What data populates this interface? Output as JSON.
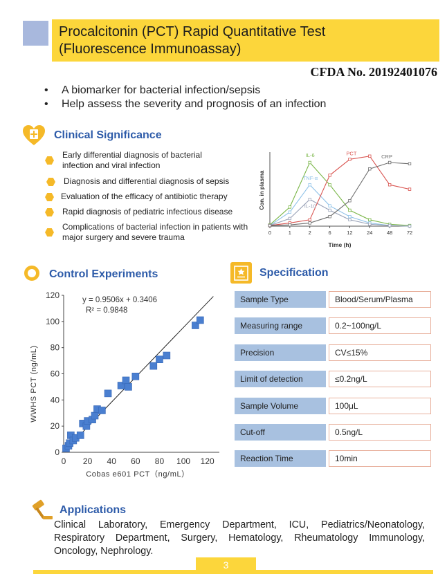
{
  "title": {
    "line1": "Procalcitonin (PCT) Rapid Quantitative Test",
    "line2": "(Fluorescence Immunoassay)"
  },
  "cfda": "CFDA No. 20192401076",
  "bullets": [
    "A biomarker for bacterial infection/sepsis",
    "Help assess the severity and prognosis of an infection"
  ],
  "clinical": {
    "heading": "Clinical Significance",
    "items": [
      "Early differential diagnosis of bacterial infection and viral infection",
      "Diagnosis and differential diagnosis of sepsis",
      "Evaluation of the efficacy of antibiotic therapy",
      "Rapid diagnosis of pediatric infectious disease",
      "Complications of bacterial infection in patients with major surgery and severe trauma"
    ]
  },
  "control": {
    "heading": "Control Experiments"
  },
  "specification": {
    "heading": "Specification",
    "rows": [
      {
        "label": "Sample  Type",
        "value": "Blood/Serum/Plasma"
      },
      {
        "label": "Measuring range",
        "value": "0.2~100ng/L"
      },
      {
        "label": "Precision",
        "value": "CV≤15%"
      },
      {
        "label": "Limit of detection",
        "value": "≤0.2ng/L"
      },
      {
        "label": "Sample  Volume",
        "value": "100μL"
      },
      {
        "label": "Cut-off",
        "value": "0.5ng/L"
      },
      {
        "label": "Reaction Time",
        "value": "10min"
      }
    ]
  },
  "applications": {
    "heading": "Applications",
    "text": "Clinical Laboratory, Emergency Department, ICU, Pediatrics/Neonatology, Respiratory Department, Surgery, Hematology, Rheumatology Immunology, Oncology, Nephrology."
  },
  "page_number": "3",
  "colors": {
    "accent_yellow": "#fcd63b",
    "heading_blue": "#2d5ba9",
    "spec_label_bg": "#a8c1e0"
  },
  "chart_data": [
    {
      "type": "line",
      "title": "",
      "xlabel": "Time (h)",
      "ylabel": "Con. in plasma",
      "categories": [
        "0",
        "1",
        "2",
        "6",
        "12",
        "24",
        "48",
        "72"
      ],
      "ylim": [
        0,
        10
      ],
      "series": [
        {
          "name": "IL-6",
          "color": "#7ab648",
          "values": [
            0.2,
            3.0,
            10.0,
            6.5,
            2.5,
            1.0,
            0.3,
            0.1
          ]
        },
        {
          "name": "TNF-α",
          "color": "#8fc2e8",
          "values": [
            0.1,
            2.2,
            6.5,
            3.2,
            1.5,
            0.5,
            0.1,
            0.0
          ]
        },
        {
          "name": "IL-10",
          "color": "#9aa3b8",
          "values": [
            0.1,
            1.2,
            4.2,
            2.5,
            1.0,
            0.3,
            0.1,
            0.0
          ]
        },
        {
          "name": "PCT",
          "color": "#d9534f",
          "values": [
            0.1,
            0.5,
            1.0,
            8.0,
            10.5,
            11.0,
            6.5,
            5.8
          ]
        },
        {
          "name": "CRP",
          "color": "#6f6f6f",
          "values": [
            0.1,
            0.2,
            0.5,
            1.5,
            4.0,
            9.0,
            10.0,
            9.8
          ]
        }
      ]
    },
    {
      "type": "scatter",
      "title": "",
      "xlabel": "Cobas e601 PCT（ng/mL）",
      "ylabel": "WWHS PCT (ng/mL)",
      "xlim": [
        0,
        130
      ],
      "ylim": [
        0,
        120
      ],
      "x_ticks": [
        "0",
        "20",
        "40",
        "60",
        "80",
        "100",
        "120"
      ],
      "y_ticks": [
        "0",
        "20",
        "40",
        "60",
        "80",
        "100",
        "120"
      ],
      "equation": "y = 0.9506x + 0.3406",
      "r2": "R² = 0.9848",
      "fit": {
        "slope": 0.9506,
        "intercept": 0.3406
      },
      "points": [
        [
          2,
          3
        ],
        [
          4,
          5
        ],
        [
          5,
          7
        ],
        [
          6,
          13
        ],
        [
          8,
          9
        ],
        [
          10,
          11
        ],
        [
          14,
          13
        ],
        [
          16,
          22
        ],
        [
          19,
          20
        ],
        [
          20,
          24
        ],
        [
          24,
          25
        ],
        [
          26,
          28
        ],
        [
          28,
          33
        ],
        [
          32,
          32
        ],
        [
          37,
          45
        ],
        [
          48,
          51
        ],
        [
          52,
          55
        ],
        [
          54,
          50
        ],
        [
          60,
          58
        ],
        [
          75,
          66
        ],
        [
          80,
          71
        ],
        [
          86,
          74
        ],
        [
          110,
          97
        ],
        [
          114,
          101
        ]
      ]
    }
  ]
}
